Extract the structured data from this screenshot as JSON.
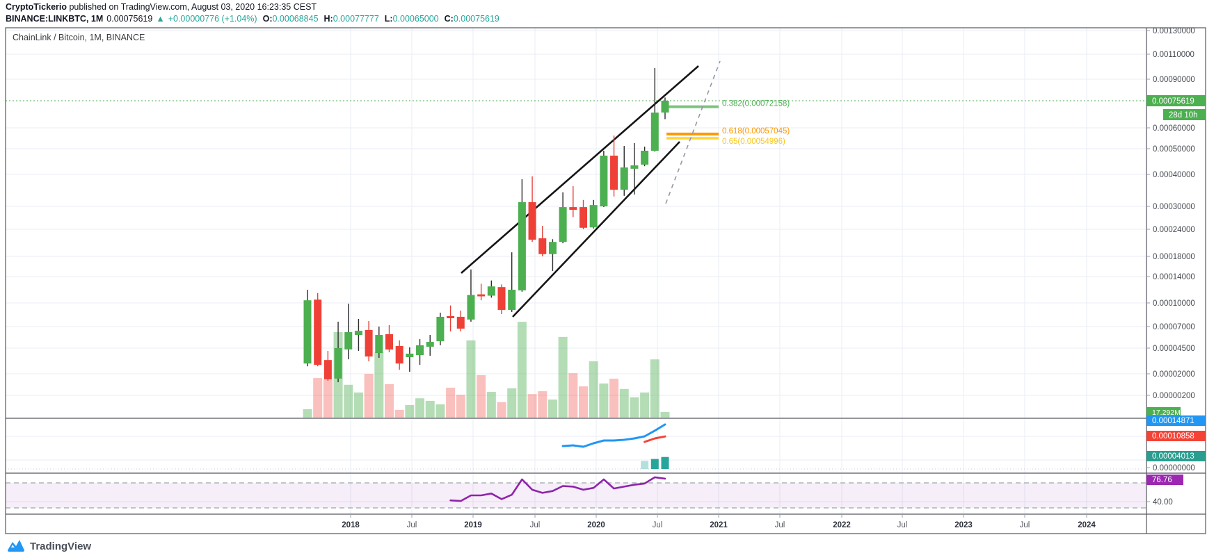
{
  "header": {
    "author": "CryptoTickerio",
    "published": " published on TradingView.com, August 03, 2020 16:23:35 CEST",
    "symbol": "BINANCE:LINKBTC, 1M",
    "price": "0.00075619",
    "arrow": "▲",
    "change": "+0.00000776 (+1.04%)",
    "o_label": "O:",
    "o_value": "0.00068845",
    "h_label": "H:",
    "h_value": "0.00077777",
    "l_label": "L:",
    "l_value": "0.00065000",
    "c_label": "C:",
    "c_value": "0.00075619"
  },
  "pane_title": "ChainLink / Bitcoin, 1M, BINANCE",
  "footer": {
    "logo_text": "TradingView"
  },
  "colors": {
    "up": "#4CAF50",
    "down": "#EF4037",
    "accent_teal": "#26a69a",
    "macd_line": "#2196F3",
    "signal_line": "#F44336",
    "hist": "#26a69a",
    "rsi": "#8E24AA",
    "fib_382": "#4CAF50",
    "fib_618": "#FF9800",
    "fib_65": "#F9C822",
    "last_price_bg": "#4CAF50",
    "macd_tag_bg": "#2196F3",
    "signal_tag_bg": "#F44336",
    "hist_tag_bg": "#2a9d8f",
    "rsi_tag_bg": "#9C27B0",
    "grid": "#e9edf4"
  },
  "chart_data": {
    "type": "candlestick",
    "title": "ChainLink / Bitcoin, 1M, BINANCE",
    "pair": "LINK/BTC",
    "exchange": "BINANCE",
    "interval": "1M",
    "scale": "log",
    "price_axis_ticks": [
      "0.00130000",
      "0.00110000",
      "0.00090000",
      "0.00060000",
      "0.00050000",
      "0.00040000",
      "0.00030000",
      "0.00024000",
      "0.00018000",
      "0.00014000",
      "0.00010000",
      "0.00007000",
      "0.00004500",
      "0.00002000",
      "0.00000200"
    ],
    "time_axis_ticks": [
      "2018",
      "Jul",
      "2019",
      "Jul",
      "2020",
      "Jul",
      "2021",
      "Jul",
      "2022",
      "Jul",
      "2023",
      "Jul",
      "2024"
    ],
    "last_price_label": "0.00075619",
    "countdown_label": "28d 10h",
    "volume_label": "17.292M",
    "macd_value_label": "0.00014871",
    "signal_value_label": "0.00010858",
    "hist_value_label": "0.00004013",
    "macd_zero_label": "0.00000000",
    "rsi_value_label": "76.76",
    "rsi_mid_label": "40.00",
    "fib_labels": [
      "0.382(0.00072158)",
      "0.618(0.00057045)",
      "0.65(0.00054996)"
    ],
    "fib_levels": [
      {
        "ratio": 0.382,
        "price": 0.00072158
      },
      {
        "ratio": 0.618,
        "price": 0.00057045
      },
      {
        "ratio": 0.65,
        "price": 0.00054996
      }
    ],
    "candles_format": [
      "month",
      "open",
      "high",
      "low",
      "close",
      "volume_millions"
    ],
    "candles": [
      [
        "2017-09",
        3e-05,
        0.00012,
        2.73e-05,
        0.000104,
        26
      ],
      [
        "2017-10",
        0.000105,
        0.000115,
        2.73e-05,
        2.87e-05,
        123
      ],
      [
        "2017-11",
        3.34e-05,
        4.23e-05,
        1.42e-05,
        1.54e-05,
        119
      ],
      [
        "2017-12",
        1.6e-05,
        7.62e-05,
        1.3e-05,
        4.5e-05,
        266
      ],
      [
        "2018-01",
        4.37e-05,
        9.9e-05,
        3.41e-05,
        6.35e-05,
        102
      ],
      [
        "2018-02",
        6.03e-05,
        7.97e-05,
        4.23e-05,
        6.51e-05,
        78
      ],
      [
        "2018-03",
        6.6e-05,
        7.7e-05,
        3.21e-05,
        3.68e-05,
        136
      ],
      [
        "2018-04",
        4.02e-05,
        7e-05,
        3.55e-05,
        6.03e-05,
        203
      ],
      [
        "2018-05",
        6.11e-05,
        7.18e-05,
        4.09e-05,
        4.36e-05,
        104
      ],
      [
        "2018-06",
        4.74e-05,
        5.39e-05,
        2.39e-05,
        3e-05,
        24
      ],
      [
        "2018-07",
        3.62e-05,
        4.58e-05,
        2.2e-05,
        3.96e-05,
        39
      ],
      [
        "2018-08",
        3.82e-05,
        5.54e-05,
        2.87e-05,
        4.82e-05,
        60
      ],
      [
        "2018-09",
        4.66e-05,
        6.03e-05,
        3.75e-05,
        5.22e-05,
        52
      ],
      [
        "2018-10",
        5.3e-05,
        8.76e-05,
        4.82e-05,
        8.24e-05,
        41
      ],
      [
        "2018-11",
        8.33e-05,
        9.68e-05,
        6.43e-05,
        8.06e-05,
        93
      ],
      [
        "2018-12",
        8.24e-05,
        9.03e-05,
        6.43e-05,
        6.76e-05,
        71
      ],
      [
        "2019-01",
        7.89e-05,
        0.000154,
        7.62e-05,
        0.000112,
        240
      ],
      [
        "2019-02",
        0.000113,
        0.000129,
        0.000104,
        0.00011,
        132
      ],
      [
        "2019-03",
        0.000111,
        0.000134,
        0.000108,
        0.000125,
        80
      ],
      [
        "2019-04",
        0.000124,
        0.000128,
        8.59e-05,
        9.12e-05,
        48
      ],
      [
        "2019-05",
        9.12e-05,
        0.000189,
        8.86e-05,
        0.00012,
        91
      ],
      [
        "2019-06",
        0.000119,
        0.000385,
        0.000117,
        0.000313,
        298
      ],
      [
        "2019-07",
        0.000313,
        0.000394,
        0.000212,
        0.000217,
        73
      ],
      [
        "2019-08",
        0.00022,
        0.000249,
        0.00018,
        0.000185,
        82
      ],
      [
        "2019-09",
        0.000185,
        0.000218,
        0.000151,
        0.000212,
        56
      ],
      [
        "2019-10",
        0.000212,
        0.000344,
        0.000209,
        0.000298,
        251
      ],
      [
        "2019-11",
        0.000298,
        0.000363,
        0.000272,
        0.000291,
        138
      ],
      [
        "2019-12",
        0.000298,
        0.00032,
        0.00024,
        0.000244,
        97
      ],
      [
        "2020-01",
        0.000245,
        0.00032,
        0.000242,
        0.000304,
        175
      ],
      [
        "2020-02",
        0.0003,
        0.000492,
        0.000298,
        0.000473,
        106
      ],
      [
        "2020-03",
        0.000473,
        0.000563,
        0.000331,
        0.000352,
        121
      ],
      [
        "2020-04",
        0.000352,
        0.000513,
        0.000333,
        0.000427,
        89
      ],
      [
        "2020-05",
        0.000422,
        0.000527,
        0.000337,
        0.000435,
        63
      ],
      [
        "2020-06",
        0.000438,
        0.00051,
        0.000432,
        0.000492,
        78
      ],
      [
        "2020-07",
        0.000492,
        0.000989,
        0.000489,
        0.000688,
        181
      ],
      [
        "2020-08",
        0.00068845,
        0.00077777,
        0.00065,
        0.00075619,
        17.292
      ]
    ],
    "indicators": {
      "macd": {
        "start": "2019-10",
        "values": [
          7.66e-05,
          7.89e-05,
          7.43e-05,
          8.59e-05,
          9.52e-05,
          9.52e-05,
          9.75e-05,
          0.000102,
          0.000109,
          0.000128,
          0.00014871
        ]
      },
      "signal": {
        "start": "2020-06",
        "values": [
          9.05e-05,
          0.000102,
          0.00010858
        ]
      },
      "histogram": {
        "start": "2020-06",
        "values": [
          2.68e-05,
          3.34e-05,
          4.013e-05
        ]
      },
      "rsi": {
        "start": "2018-11",
        "upper_band": 70,
        "lower_band": 30,
        "values": [
          42,
          41,
          50,
          50,
          53,
          44,
          51,
          75.5,
          59,
          54,
          57,
          65,
          64,
          59,
          62,
          75.5,
          61,
          64,
          67,
          69,
          79,
          76.76
        ]
      }
    }
  }
}
